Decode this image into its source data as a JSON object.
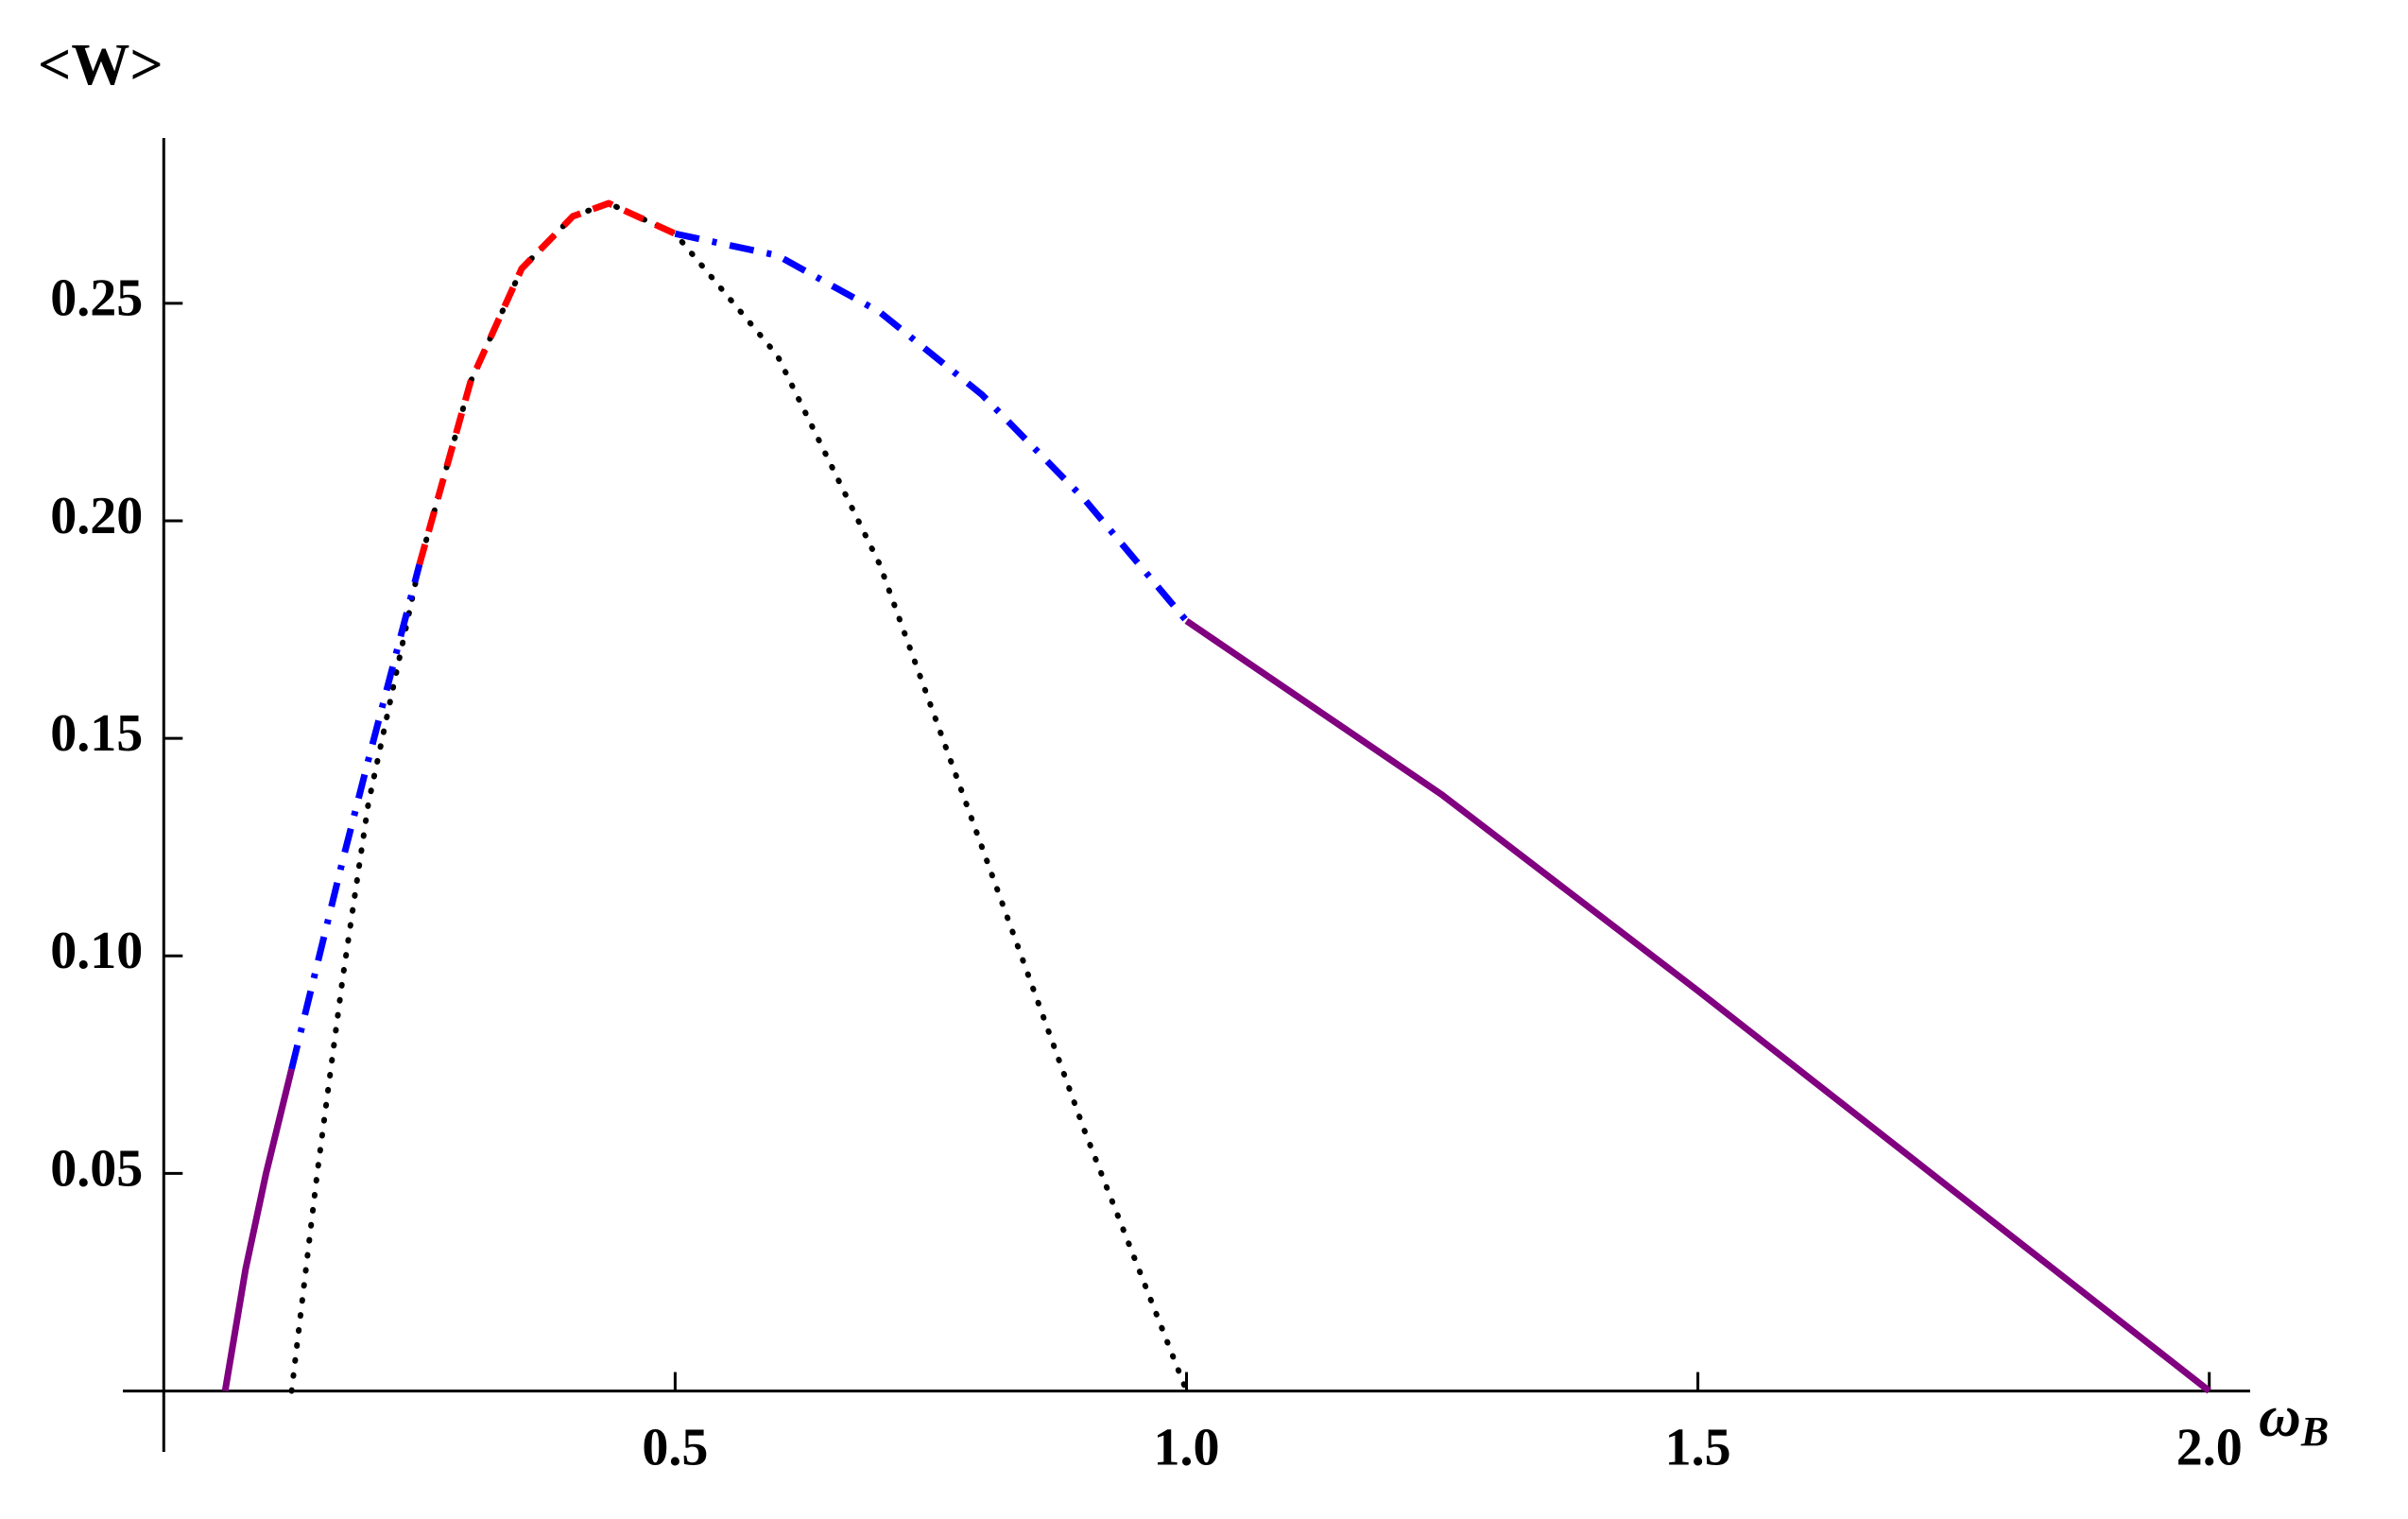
{
  "chart_data": {
    "type": "line",
    "ylabel": "<W>",
    "xlabel": "ω",
    "xlabel_subscript": "B",
    "x": [
      0.06,
      0.08,
      0.1,
      0.125,
      0.15,
      0.175,
      0.2,
      0.25,
      0.3,
      0.35,
      0.4,
      0.435,
      0.5,
      0.6,
      0.7,
      0.8,
      0.9,
      1.0,
      1.25,
      1.5,
      1.75,
      2.0
    ],
    "series": [
      {
        "color": "#000000",
        "dash": "dotted",
        "values": [
          null,
          null,
          null,
          0,
          0.05,
          0.095,
          0.135,
          0.19,
          0.232,
          0.258,
          0.27,
          0.273,
          0.266,
          0.238,
          0.19,
          0.125,
          0.06,
          0,
          null,
          null,
          null,
          null
        ]
      },
      {
        "color": "#800080",
        "dash": "solid",
        "values": [
          0,
          0.028,
          0.05,
          0.074,
          null,
          null,
          null,
          null,
          null,
          null,
          null,
          null,
          null,
          null,
          null,
          null,
          null,
          0.177,
          0.137,
          0.092,
          0.046,
          0
        ]
      },
      {
        "color": "#0000ff",
        "dash": "dashdot",
        "values": [
          null,
          null,
          null,
          0.074,
          0.098,
          0.122,
          0.145,
          0.19,
          null,
          null,
          null,
          null,
          0.266,
          0.261,
          0.248,
          0.229,
          0.205,
          0.177,
          null,
          null,
          null,
          null
        ]
      },
      {
        "color": "#ff0000",
        "dash": "dashed",
        "values": [
          null,
          null,
          null,
          null,
          null,
          null,
          null,
          0.19,
          0.232,
          0.258,
          0.27,
          0.273,
          0.266,
          null,
          null,
          null,
          null,
          null,
          null,
          null,
          null,
          null
        ]
      }
    ],
    "xlim": [
      -0.04,
      2.04
    ],
    "ylim": [
      -0.014,
      0.288
    ],
    "xticks": [
      0.5,
      {
        "value": 1,
        "label": "1.0"
      },
      1.5,
      {
        "value": 2,
        "label": "2.0"
      }
    ],
    "yticks": [
      0.05,
      {
        "value": 0.1,
        "label": "0.10"
      },
      0.15,
      {
        "value": 0.2,
        "label": "0.20"
      },
      0.25
    ],
    "grid": false
  }
}
